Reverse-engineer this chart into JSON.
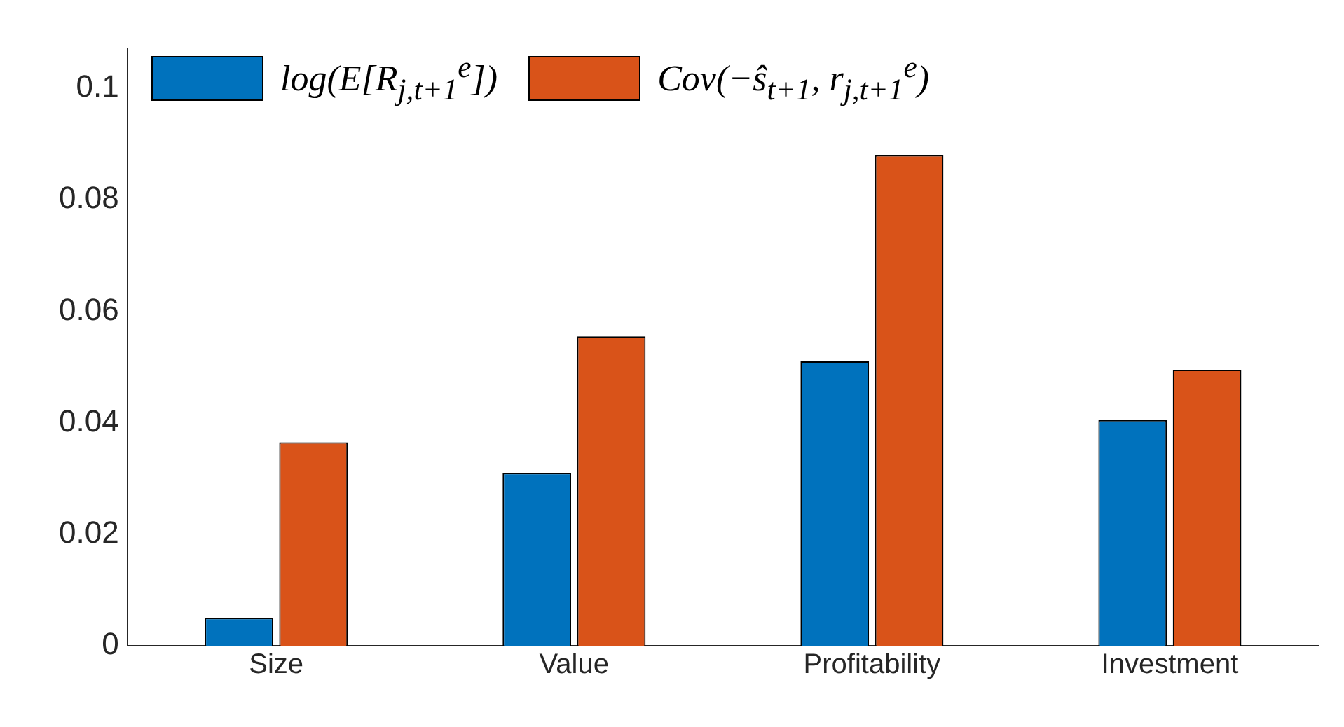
{
  "chart_data": {
    "type": "bar",
    "categories": [
      "Size",
      "Value",
      "Profitability",
      "Investment"
    ],
    "series": [
      {
        "name": "log(E[R$_{j,t+1}$$^{e}$])",
        "color": "#0072bd",
        "values": [
          0.005,
          0.031,
          0.051,
          0.0405
        ]
      },
      {
        "name": "Cov(−ŝ$_{t+1}$, r$_{j,t+1}$$^{e}$)",
        "color": "#d95319",
        "values": [
          0.0365,
          0.0555,
          0.088,
          0.0495
        ]
      }
    ],
    "ylim": [
      0,
      0.107
    ],
    "yticks": [
      0,
      0.02,
      0.04,
      0.06,
      0.08,
      {
        "value": 0.1,
        "label": "0.1"
      }
    ],
    "grid": false,
    "legend": "top left"
  }
}
